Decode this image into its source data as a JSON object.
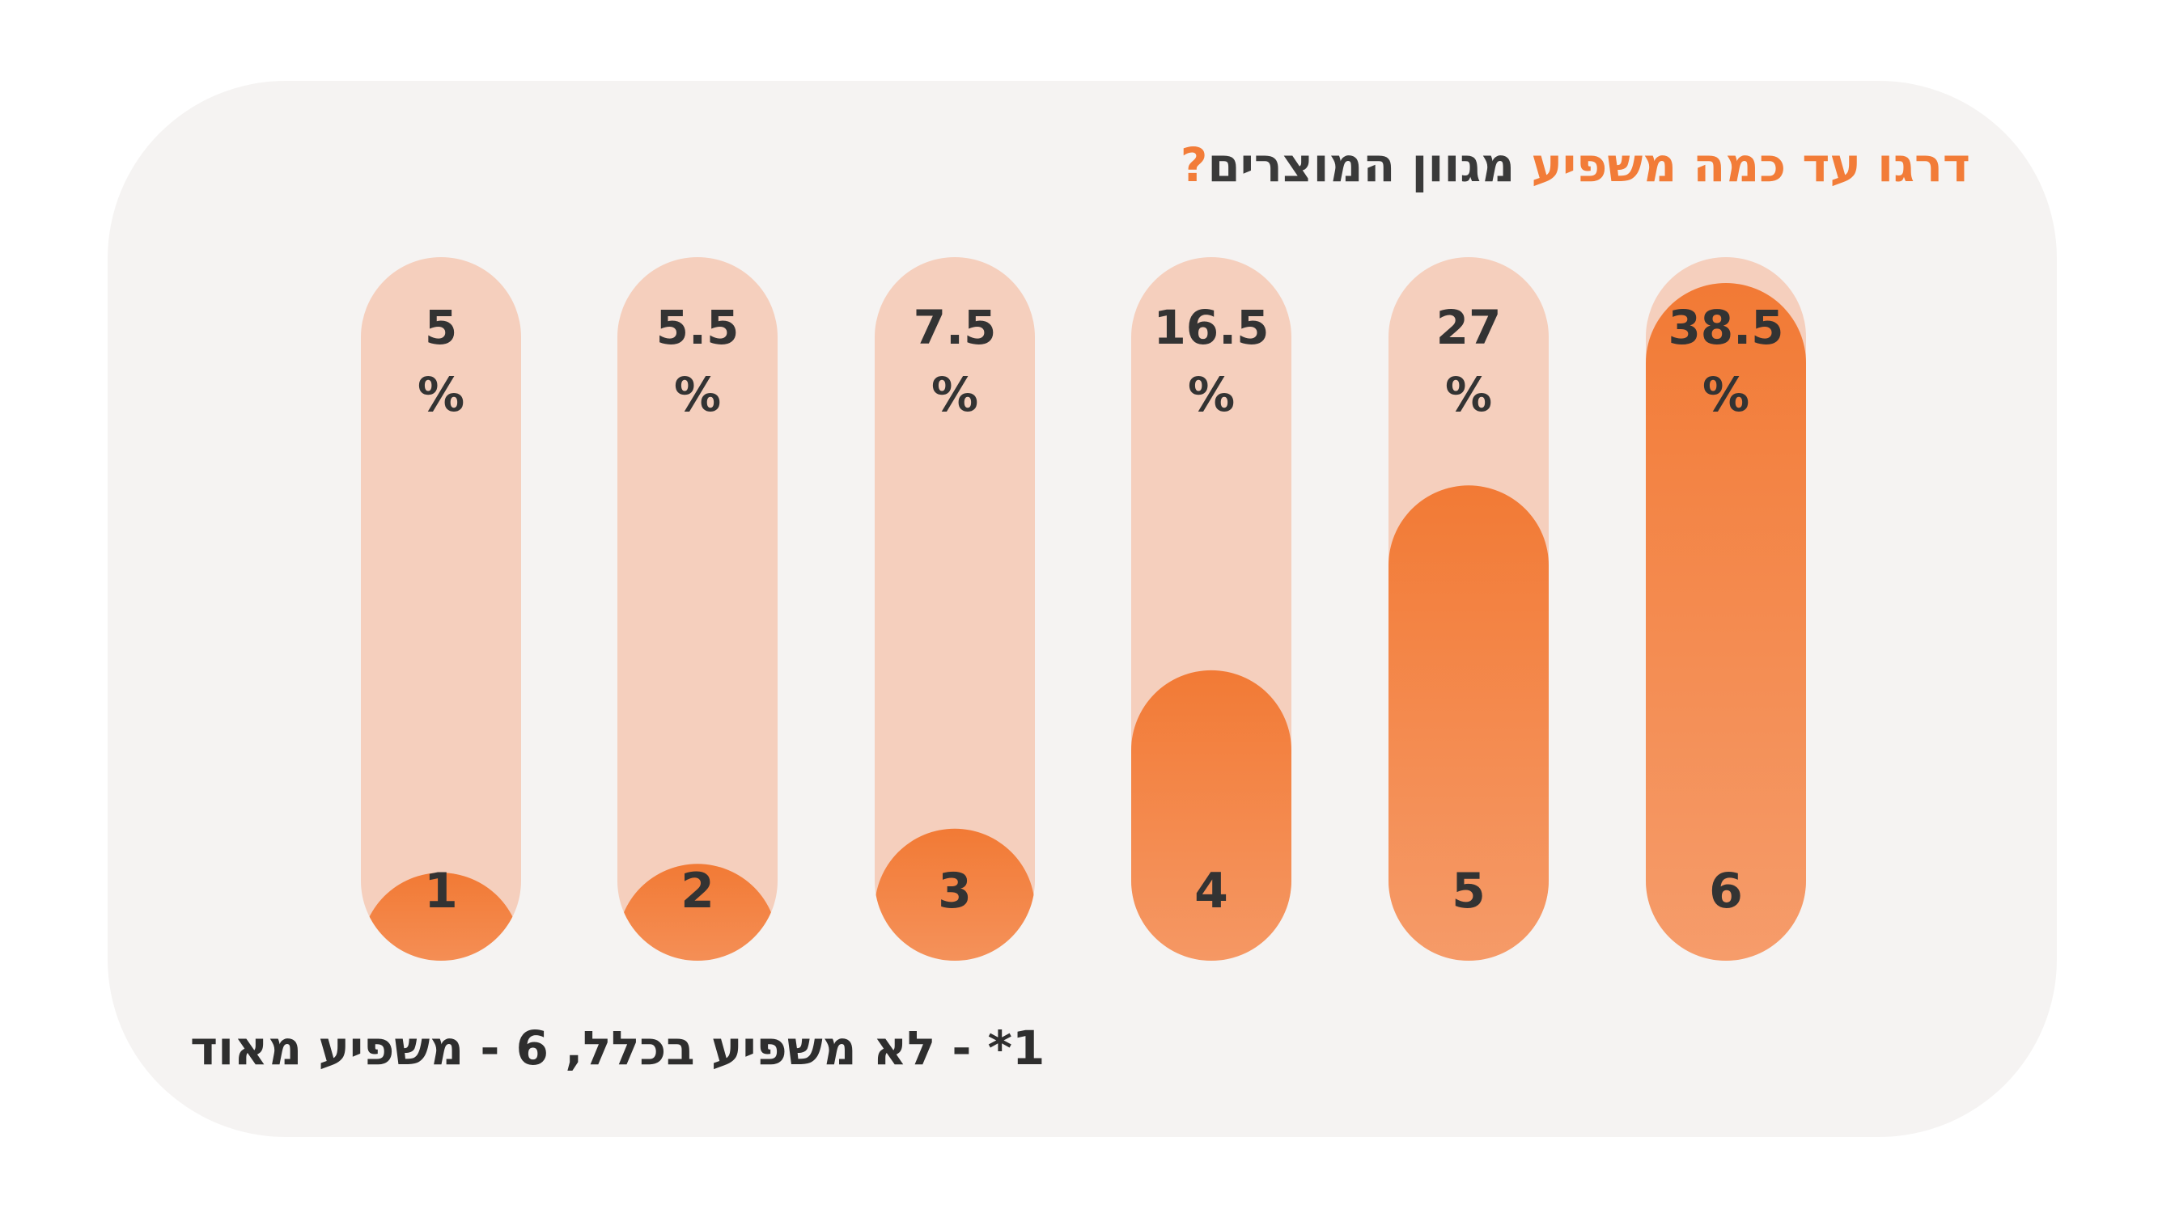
{
  "chart_data": {
    "type": "bar",
    "title": {
      "accent": "דרגו עד כמה משפיע",
      "rest": "מגוון המוצרים",
      "mark": "?"
    },
    "categories": [
      "1",
      "2",
      "3",
      "4",
      "5",
      "6"
    ],
    "values": [
      5,
      5.5,
      7.5,
      16.5,
      27,
      38.5
    ],
    "value_suffix": "%",
    "ylim": [
      0,
      40
    ],
    "footnote": "1* - לא משפיע בכלל, 6 - משפיע מאוד",
    "colors": {
      "track": "#f5cfbd",
      "fill_top": "#f27a35",
      "fill_bottom": "#f6a071",
      "background": "#f5f3f2",
      "accent": "#f27c38",
      "text": "#333333"
    }
  }
}
